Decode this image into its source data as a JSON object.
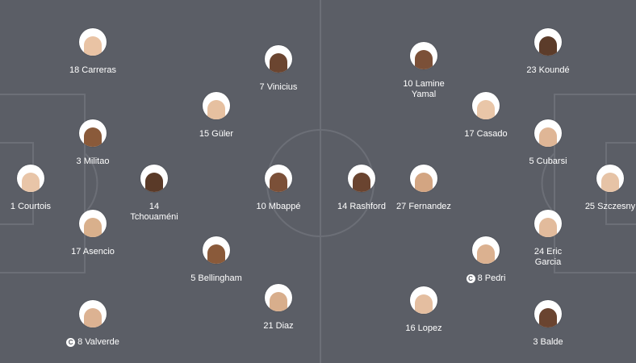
{
  "colors": {
    "pitch": "#5b5e66",
    "lines": "#6c6f77",
    "text": "#ffffff"
  },
  "home": {
    "players": [
      {
        "label": "1 Courtois",
        "captain": false,
        "skin": "#e8c5a8"
      },
      {
        "label": "3 Militao",
        "captain": false,
        "skin": "#8a5a3a"
      },
      {
        "label": "17 Asencio",
        "captain": false,
        "skin": "#d9b08c"
      },
      {
        "label": "18 Carreras",
        "captain": false,
        "skin": "#e9c3a4"
      },
      {
        "label": "14 Tchouaméni",
        "captain": false,
        "skin": "#5a3a28"
      },
      {
        "label": "8 Valverde",
        "captain": true,
        "skin": "#dcb292"
      },
      {
        "label": "15 Güler",
        "captain": false,
        "skin": "#e6c0a0"
      },
      {
        "label": "5 Bellingham",
        "captain": false,
        "skin": "#8a5a3a"
      },
      {
        "label": "7 Vinicius",
        "captain": false,
        "skin": "#6b4530"
      },
      {
        "label": "10 Mbappé",
        "captain": false,
        "skin": "#7b5038"
      },
      {
        "label": "21 Diaz",
        "captain": false,
        "skin": "#d8ae8c"
      }
    ]
  },
  "away": {
    "players": [
      {
        "label": "25 Szczesny",
        "captain": false,
        "skin": "#e6c3a6"
      },
      {
        "label": "5 Cubarsi",
        "captain": false,
        "skin": "#dfb696"
      },
      {
        "label": "24 Eric Garcia",
        "captain": false,
        "skin": "#e2bb9c"
      },
      {
        "label": "23 Koundé",
        "captain": false,
        "skin": "#5c3c2a"
      },
      {
        "label": "3 Balde",
        "captain": false,
        "skin": "#6a4430"
      },
      {
        "label": "17 Casado",
        "captain": false,
        "skin": "#e9c6a8"
      },
      {
        "label": "8 Pedri",
        "captain": true,
        "skin": "#dbb190"
      },
      {
        "label": "16 Lopez",
        "captain": false,
        "skin": "#e4bea0"
      },
      {
        "label": "10 Lamine Yamal",
        "captain": false,
        "skin": "#7b5038"
      },
      {
        "label": "27 Fernandez",
        "captain": false,
        "skin": "#d3a582"
      },
      {
        "label": "14 Rashford",
        "captain": false,
        "skin": "#6a4430"
      }
    ]
  }
}
